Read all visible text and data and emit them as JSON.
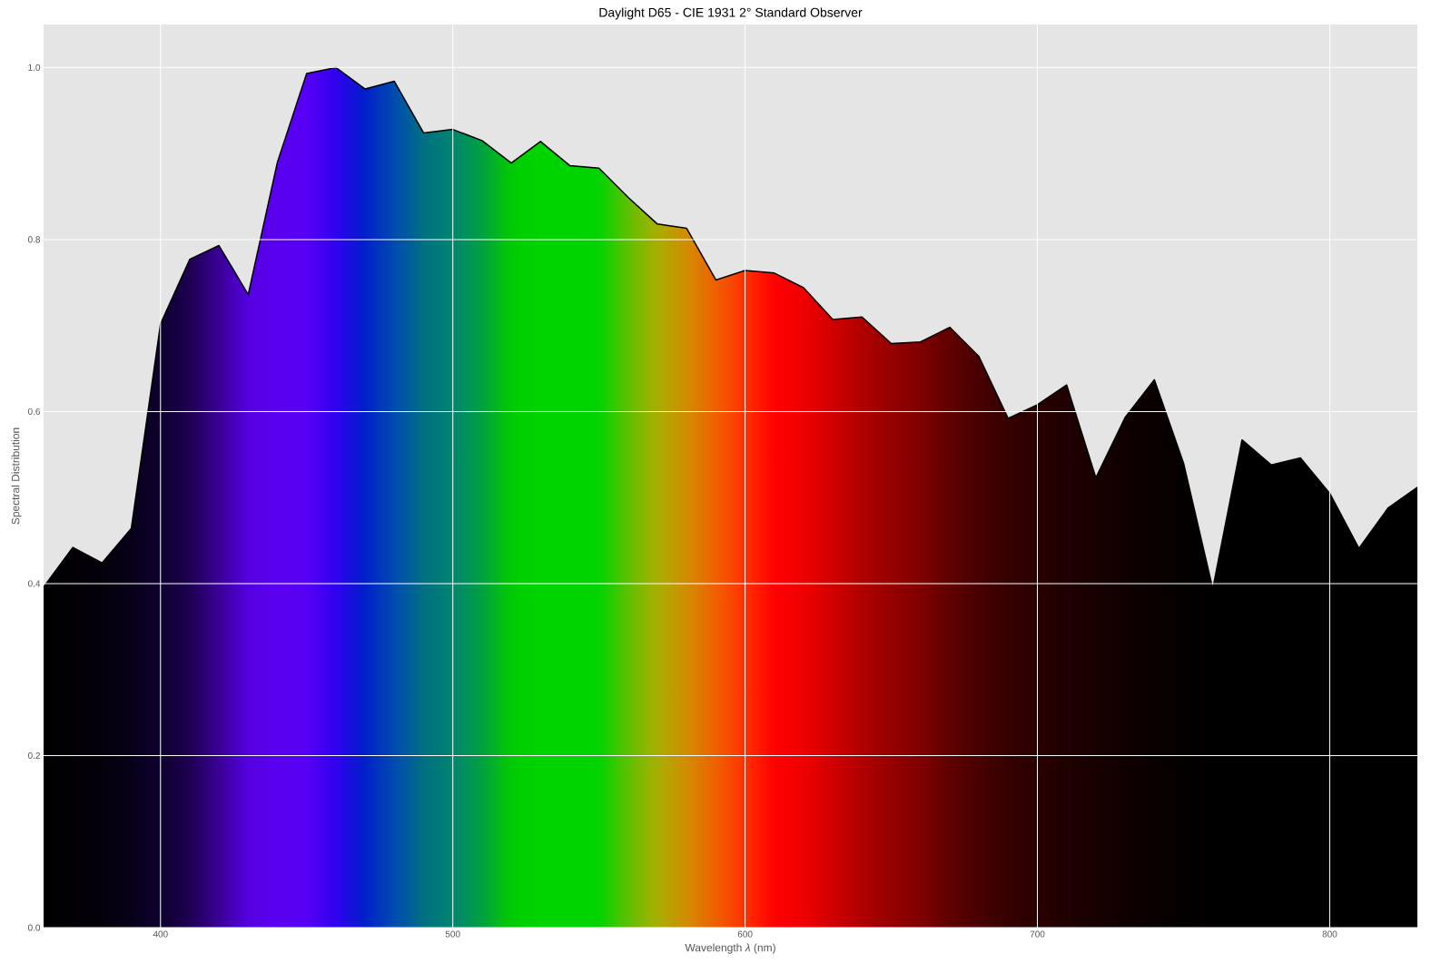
{
  "chart_data": {
    "type": "area",
    "title": "Daylight D65 - CIE 1931 2° Standard Observer",
    "xlabel": "Wavelength *λ* (nm)",
    "ylabel": "Spectral Distribution",
    "x": [
      360,
      370,
      380,
      390,
      400,
      410,
      420,
      430,
      440,
      450,
      460,
      470,
      480,
      490,
      500,
      510,
      520,
      530,
      540,
      550,
      560,
      570,
      580,
      590,
      600,
      610,
      620,
      630,
      640,
      650,
      660,
      670,
      680,
      690,
      700,
      710,
      720,
      730,
      740,
      750,
      760,
      770,
      780,
      790,
      800,
      810,
      820,
      830
    ],
    "values": [
      0.396,
      0.442,
      0.424,
      0.464,
      0.702,
      0.777,
      0.793,
      0.736,
      0.89,
      0.993,
      1.0,
      0.975,
      0.984,
      0.924,
      0.928,
      0.915,
      0.889,
      0.914,
      0.886,
      0.883,
      0.849,
      0.818,
      0.813,
      0.753,
      0.764,
      0.761,
      0.744,
      0.707,
      0.71,
      0.679,
      0.681,
      0.698,
      0.664,
      0.592,
      0.608,
      0.631,
      0.523,
      0.593,
      0.637,
      0.54,
      0.394,
      0.567,
      0.538,
      0.546,
      0.505,
      0.441,
      0.488,
      0.512
    ],
    "colors": [
      "#000000",
      "#020005",
      "#04000a",
      "#08001a",
      "#0f0030",
      "#1e0050",
      "#3a0096",
      "#5500e0",
      "#5a00f0",
      "#5800f5",
      "#3000f0",
      "#0020c8",
      "#004cb0",
      "#007080",
      "#008570",
      "#00a040",
      "#00cc00",
      "#00d500",
      "#00d400",
      "#00d400",
      "#60c000",
      "#a8ae00",
      "#d28c00",
      "#f06000",
      "#ff3000",
      "#ff0000",
      "#f00000",
      "#d00000",
      "#b00000",
      "#960000",
      "#800000",
      "#600000",
      "#480000",
      "#360000",
      "#2a0000",
      "#200000",
      "#180000",
      "#100000",
      "#0a0000",
      "#050000",
      "#000000",
      "#000000",
      "#000000",
      "#000000",
      "#000000",
      "#000000",
      "#000000",
      "#000000"
    ],
    "color": "#000000",
    "xlim": [
      360,
      830
    ],
    "ylim": [
      0,
      1.05
    ],
    "xticks": [
      400,
      500,
      600,
      700,
      800
    ],
    "yticks": [
      {
        "value": 0,
        "label": "0.0"
      },
      {
        "value": 0.2,
        "label": "0.2"
      },
      {
        "value": 0.4,
        "label": "0.4"
      },
      {
        "value": 0.6,
        "label": "0.6"
      },
      {
        "value": 0.8,
        "label": "0.8"
      },
      {
        "value": 1.0,
        "label": "1.0"
      }
    ],
    "grid": true
  }
}
